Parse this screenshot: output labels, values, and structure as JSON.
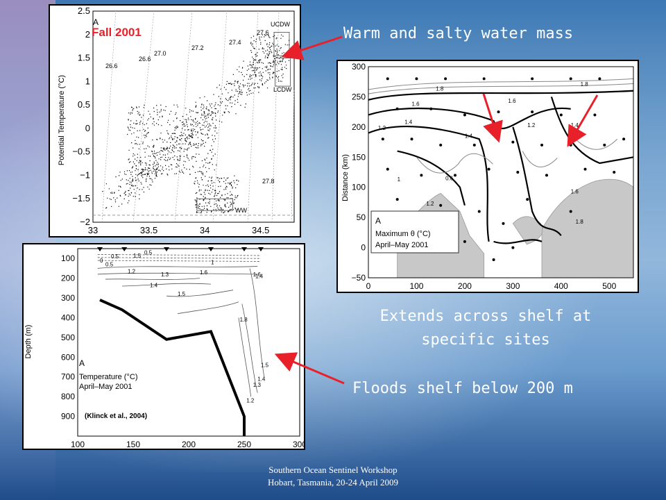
{
  "captions": {
    "warm_water": "Warm and salty water mass",
    "extends": [
      "Extends across shelf at",
      "specific sites"
    ],
    "floods": "Floods shelf below 200 m"
  },
  "footer": [
    "Southern Ocean Sentinel Workshop",
    "Hobart, Tasmania, 20-24 April 2009"
  ],
  "colors": {
    "arrow": "#e8202a",
    "caption": "#ffffff",
    "season": "#e8202a"
  },
  "chart_data": [
    {
      "type": "scatter",
      "panel_letter": "A",
      "season_label": "Fall 2001",
      "ylabel": "Potential Temperature (°C)",
      "xlabel": "",
      "xlim": [
        33,
        34.8
      ],
      "ylim": [
        -2,
        2.5
      ],
      "xticks": [
        "33",
        "33.5",
        "34",
        "34.5"
      ],
      "yticks": [
        "2.5",
        "2",
        "1.5",
        "1",
        "0.5",
        "0",
        "−0.5",
        "−1",
        "−1.5",
        "−2"
      ],
      "isopycnals": [
        "26.6",
        "26.6",
        "27.0",
        "27.2",
        "27.4",
        "27.6",
        "27.8"
      ],
      "water_mass_labels": [
        "UCDW",
        "LCDW",
        "WW"
      ],
      "grid": false
    },
    {
      "type": "heatmap",
      "subtype": "contour-map",
      "panel_letter": "A",
      "legend": [
        "Maximum θ (°C)",
        "April–May 2001"
      ],
      "ylabel": "Distance (km)",
      "xlim": [
        0,
        550
      ],
      "ylim": [
        -50,
        300
      ],
      "xticks": [
        "0",
        "100",
        "200",
        "300",
        "400",
        "500"
      ],
      "yticks": [
        "300",
        "250",
        "200",
        "150",
        "100",
        "50",
        "0",
        "−50"
      ],
      "contour_levels": [
        "1.8",
        "1.8",
        "1.6",
        "1.6",
        "1.4",
        "1.4",
        "1.2",
        "1.2",
        "1.4",
        "0.6",
        "1",
        "1.2",
        "1.6",
        "1.8"
      ]
    },
    {
      "type": "line",
      "subtype": "contour-section",
      "panel_letter": "A",
      "legend": [
        "Temperature (°C)",
        "April–May 2001"
      ],
      "citation": "(Klinck et al., 2004)",
      "ylabel": "Depth (m)",
      "xlim": [
        100,
        300
      ],
      "ylim": [
        1000,
        50
      ],
      "xticks": [
        "100",
        "150",
        "200",
        "250",
        "300"
      ],
      "yticks": [
        "100",
        "200",
        "300",
        "400",
        "500",
        "600",
        "700",
        "800",
        "900"
      ],
      "contour_levels": [
        "0.5",
        "0",
        "0.5",
        "1.5",
        "1",
        "0.5",
        "1.2",
        "1.3",
        "1.4",
        "1.5",
        "1.6",
        "1.4",
        "1.8",
        "1.6",
        "1.5",
        "1.4",
        "1.3",
        "1.2"
      ],
      "bottom_profile": {
        "x": [
          120,
          140,
          180,
          220,
          250,
          250
        ],
        "y": [
          310,
          360,
          510,
          470,
          900,
          1000
        ]
      }
    }
  ]
}
